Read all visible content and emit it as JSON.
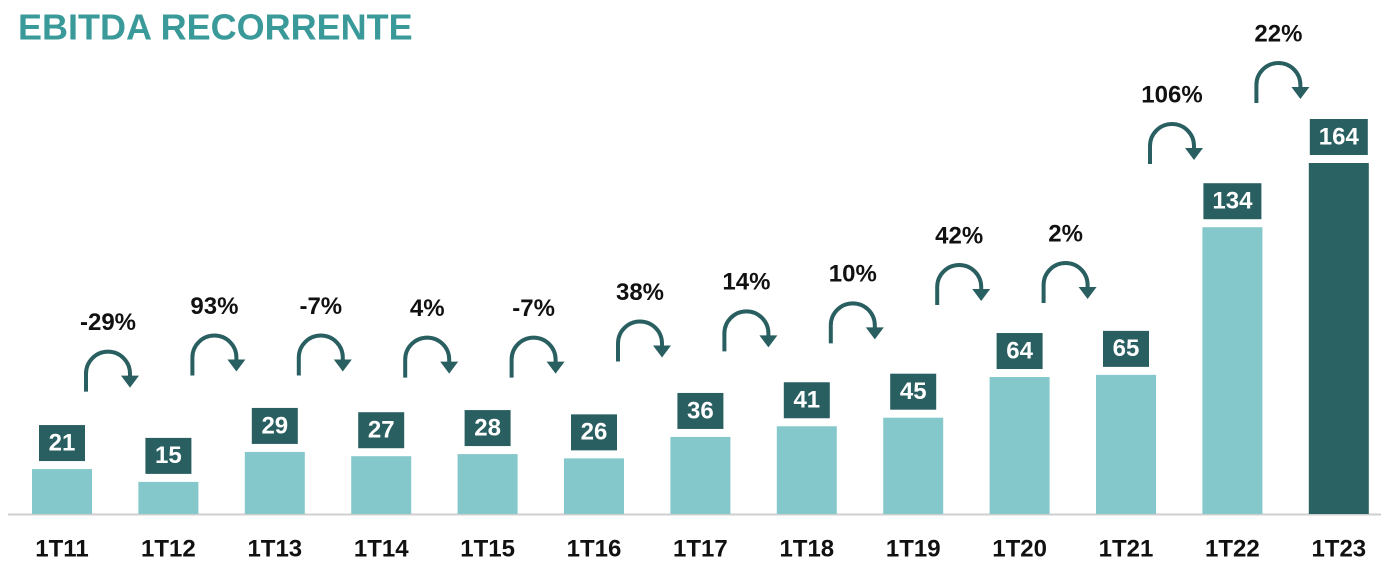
{
  "chart_data": {
    "type": "bar",
    "title": "EBITDA RECORRENTE",
    "categories": [
      "1T11",
      "1T12",
      "1T13",
      "1T14",
      "1T15",
      "1T16",
      "1T17",
      "1T18",
      "1T19",
      "1T20",
      "1T21",
      "1T22",
      "1T23"
    ],
    "values": [
      21,
      15,
      29,
      27,
      28,
      26,
      36,
      41,
      45,
      64,
      65,
      134,
      164
    ],
    "colors": [
      "#85c8cb",
      "#85c8cb",
      "#85c8cb",
      "#85c8cb",
      "#85c8cb",
      "#85c8cb",
      "#85c8cb",
      "#85c8cb",
      "#85c8cb",
      "#85c8cb",
      "#85c8cb",
      "#85c8cb",
      "#2a6163"
    ],
    "growth_labels": [
      "-29%",
      "93%",
      "-7%",
      "4%",
      "-7%",
      "38%",
      "14%",
      "10%",
      "42%",
      "2%",
      "106%",
      "22%"
    ],
    "ylim": [
      0,
      164
    ],
    "grid": false
  }
}
